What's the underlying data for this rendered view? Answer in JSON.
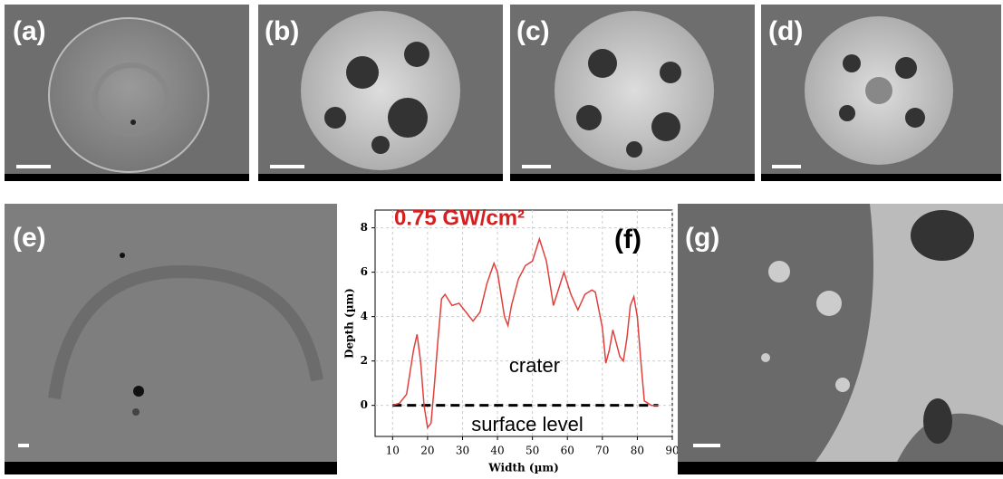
{
  "panels": [
    {
      "label": "(a)"
    },
    {
      "label": "(b)"
    },
    {
      "label": "(c)"
    },
    {
      "label": "(d)"
    },
    {
      "label": "(e)"
    },
    {
      "label": "(f)"
    },
    {
      "label": "(g)"
    }
  ],
  "chart_data": {
    "type": "line",
    "title": "0.75 GW/cm²",
    "annotations": [
      "crater",
      "surface level"
    ],
    "x_label": "Width (µm)",
    "y_label": "Depth (µm)",
    "x": [
      10,
      12,
      14,
      16,
      17,
      18,
      19,
      20,
      21,
      22,
      23,
      24,
      25,
      27,
      29,
      31,
      33,
      35,
      37,
      39,
      40,
      42,
      43,
      44,
      46,
      48,
      50,
      52,
      54,
      56,
      58,
      59,
      61,
      63,
      65,
      67,
      68,
      70,
      71,
      72,
      73,
      75,
      76,
      77,
      78,
      79,
      80,
      81,
      82,
      84,
      86
    ],
    "values": [
      0,
      0.1,
      0.5,
      2.5,
      3.2,
      2,
      0,
      -1,
      -0.8,
      1,
      3,
      4.8,
      5,
      4.5,
      4.6,
      4.2,
      3.8,
      4.2,
      5.5,
      6.4,
      6,
      4,
      3.6,
      4.5,
      5.7,
      6.3,
      6.5,
      7.5,
      6.5,
      4.5,
      5.5,
      6,
      5,
      4.3,
      5,
      5.2,
      5.1,
      3.5,
      1.9,
      2.5,
      3.4,
      2.2,
      2,
      3,
      4.5,
      4.9,
      4,
      2,
      0.2,
      0,
      0
    ],
    "color": "#e0403c",
    "xlim": [
      5,
      90
    ],
    "ylim": [
      -1.4,
      8.8
    ],
    "xticks": [
      10,
      20,
      30,
      40,
      50,
      60,
      70,
      80,
      90
    ],
    "yticks": [
      0,
      2,
      4,
      6,
      8
    ],
    "grid": true
  }
}
